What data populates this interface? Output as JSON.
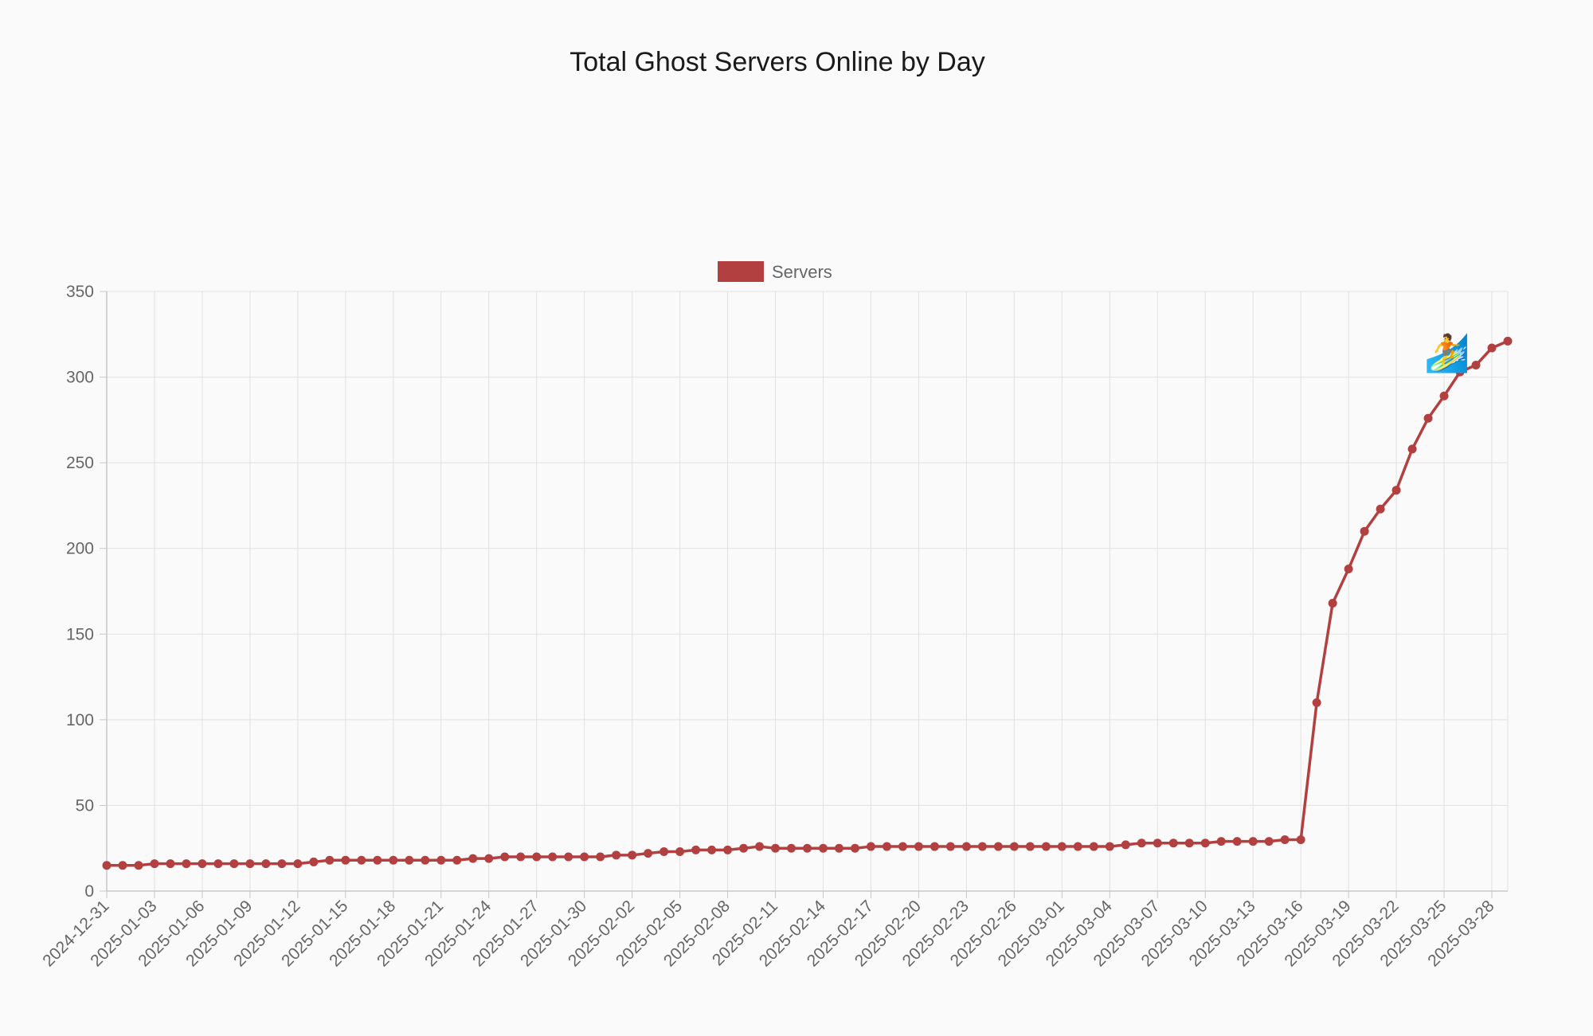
{
  "chart_data": {
    "type": "line",
    "title": "Total Ghost Servers Online by Day",
    "legend": {
      "position": "top",
      "label": "Servers"
    },
    "colors": {
      "series": "#b24040",
      "grid": "#e1e1e1",
      "axis": "#c8c8c8",
      "tick_text": "#666666",
      "title": "#1a1a1a"
    },
    "grid": true,
    "ylim": [
      0,
      350
    ],
    "y_ticks": [
      0,
      50,
      100,
      150,
      200,
      250,
      300,
      350
    ],
    "x_tick_labels": [
      "2024-12-31",
      "2025-01-03",
      "2025-01-06",
      "2025-01-09",
      "2025-01-12",
      "2025-01-15",
      "2025-01-18",
      "2025-01-21",
      "2025-01-24",
      "2025-01-27",
      "2025-01-30",
      "2025-02-02",
      "2025-02-05",
      "2025-02-08",
      "2025-02-11",
      "2025-02-14",
      "2025-02-17",
      "2025-02-20",
      "2025-02-23",
      "2025-02-26",
      "2025-03-01",
      "2025-03-04",
      "2025-03-07",
      "2025-03-10",
      "2025-03-13",
      "2025-03-16",
      "2025-03-19",
      "2025-03-22",
      "2025-03-25",
      "2025-03-28"
    ],
    "x": [
      "2024-12-31",
      "2025-01-01",
      "2025-01-02",
      "2025-01-03",
      "2025-01-04",
      "2025-01-05",
      "2025-01-06",
      "2025-01-07",
      "2025-01-08",
      "2025-01-09",
      "2025-01-10",
      "2025-01-11",
      "2025-01-12",
      "2025-01-13",
      "2025-01-14",
      "2025-01-15",
      "2025-01-16",
      "2025-01-17",
      "2025-01-18",
      "2025-01-19",
      "2025-01-20",
      "2025-01-21",
      "2025-01-22",
      "2025-01-23",
      "2025-01-24",
      "2025-01-25",
      "2025-01-26",
      "2025-01-27",
      "2025-01-28",
      "2025-01-29",
      "2025-01-30",
      "2025-01-31",
      "2025-02-01",
      "2025-02-02",
      "2025-02-03",
      "2025-02-04",
      "2025-02-05",
      "2025-02-06",
      "2025-02-07",
      "2025-02-08",
      "2025-02-09",
      "2025-02-10",
      "2025-02-11",
      "2025-02-12",
      "2025-02-13",
      "2025-02-14",
      "2025-02-15",
      "2025-02-16",
      "2025-02-17",
      "2025-02-18",
      "2025-02-19",
      "2025-02-20",
      "2025-02-21",
      "2025-02-22",
      "2025-02-23",
      "2025-02-24",
      "2025-02-25",
      "2025-02-26",
      "2025-02-27",
      "2025-02-28",
      "2025-03-01",
      "2025-03-02",
      "2025-03-03",
      "2025-03-04",
      "2025-03-05",
      "2025-03-06",
      "2025-03-07",
      "2025-03-08",
      "2025-03-09",
      "2025-03-10",
      "2025-03-11",
      "2025-03-12",
      "2025-03-13",
      "2025-03-14",
      "2025-03-15",
      "2025-03-16",
      "2025-03-17",
      "2025-03-18",
      "2025-03-19",
      "2025-03-20",
      "2025-03-21",
      "2025-03-22",
      "2025-03-23",
      "2025-03-24",
      "2025-03-25",
      "2025-03-26",
      "2025-03-27",
      "2025-03-28",
      "2025-03-29"
    ],
    "series": [
      {
        "name": "Servers",
        "values": [
          15,
          15,
          15,
          16,
          16,
          16,
          16,
          16,
          16,
          16,
          16,
          16,
          16,
          17,
          18,
          18,
          18,
          18,
          18,
          18,
          18,
          18,
          18,
          19,
          19,
          20,
          20,
          20,
          20,
          20,
          20,
          20,
          21,
          21,
          22,
          23,
          23,
          24,
          24,
          24,
          25,
          26,
          25,
          25,
          25,
          25,
          25,
          25,
          26,
          26,
          26,
          26,
          26,
          26,
          26,
          26,
          26,
          26,
          26,
          26,
          26,
          26,
          26,
          26,
          27,
          28,
          28,
          28,
          28,
          28,
          29,
          29,
          29,
          29,
          30,
          30,
          110,
          168,
          188,
          210,
          223,
          234,
          258,
          276,
          289,
          303,
          307,
          317,
          321
        ]
      }
    ],
    "decoration": {
      "icon": "surfer-icon",
      "glyph": "🏄"
    }
  }
}
